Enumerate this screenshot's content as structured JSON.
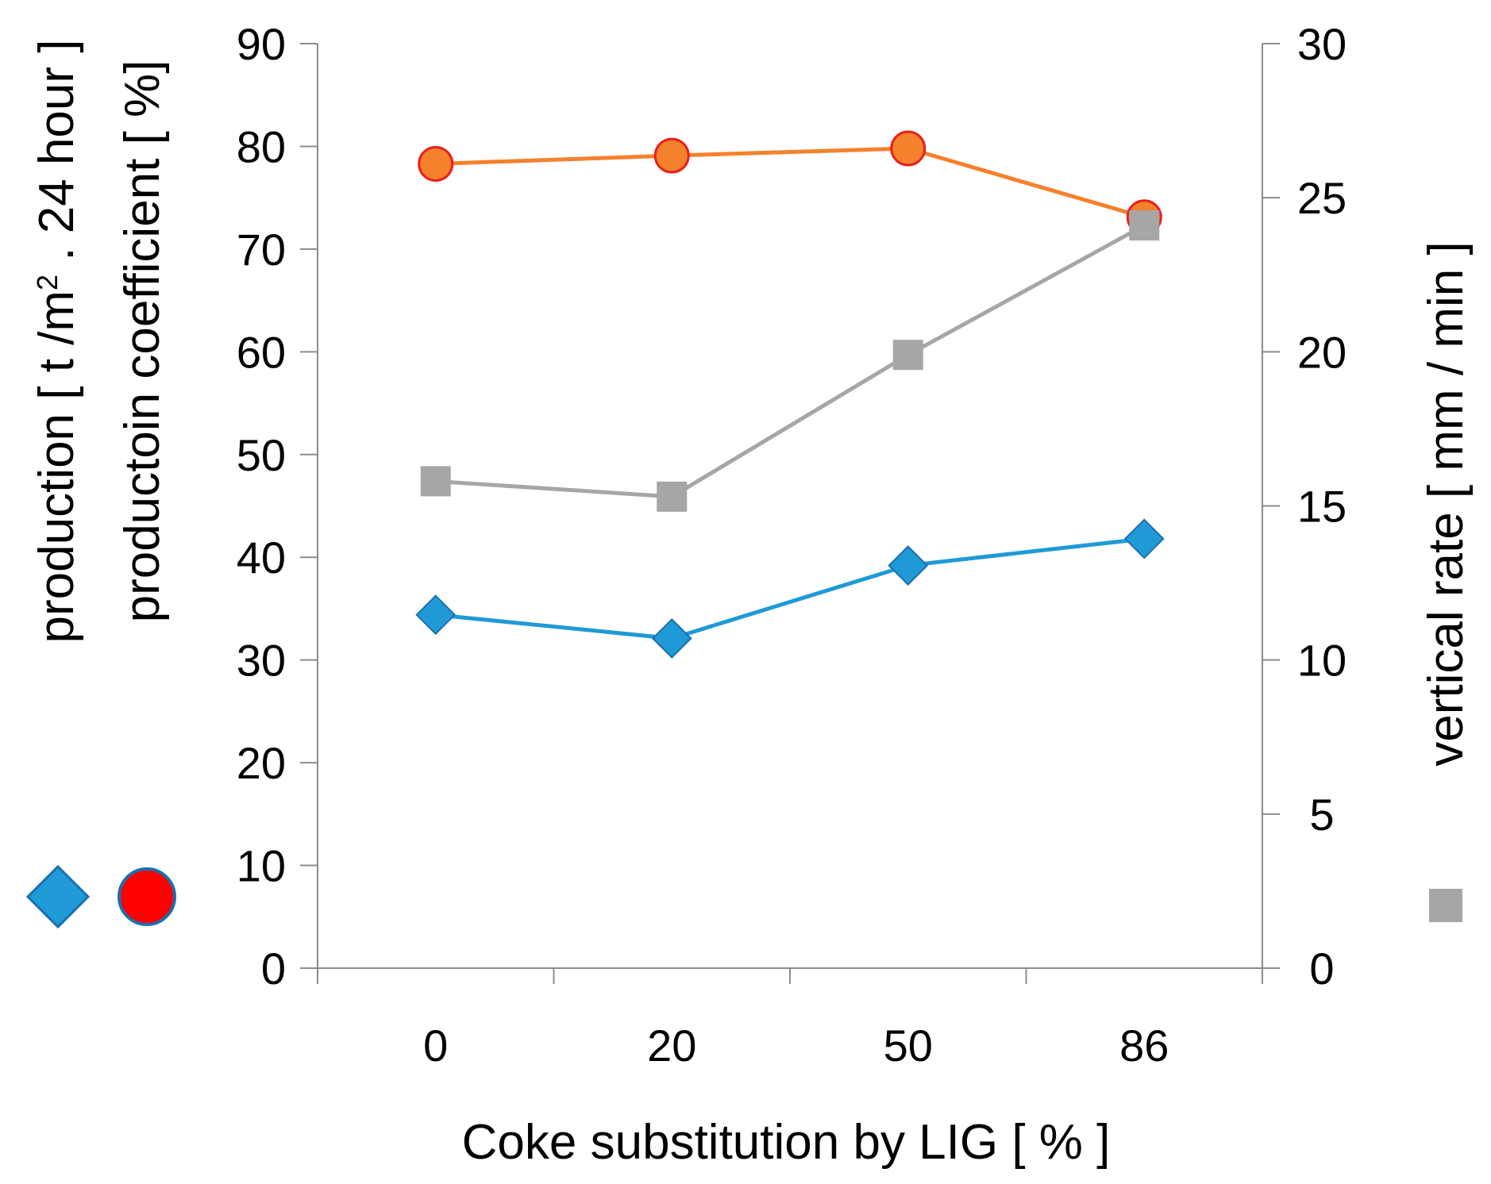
{
  "chart_data": {
    "type": "line",
    "categories": [
      "0",
      "20",
      "50",
      "86"
    ],
    "xlabel": "Coke substitution by LIG [ % ]",
    "left_axis": {
      "ylim": [
        0,
        90
      ],
      "ticks": [
        0,
        10,
        20,
        30,
        40,
        50,
        60,
        70,
        80,
        90
      ],
      "label_line1": {
        "before_sup": "production [ t /m",
        "sup": "2",
        "after_sup": " . 24 hour ]"
      },
      "label_line2": "productoin coefficient   [ %]"
    },
    "right_axis": {
      "ylim": [
        0,
        30
      ],
      "ticks": [
        0,
        5,
        10,
        15,
        20,
        25,
        30
      ],
      "label": "vertical rate [ mm / min ]"
    },
    "series": [
      {
        "name": "production",
        "axis": "left",
        "marker": "diamond",
        "line_color": "#1f9ad6",
        "marker_fill": "#1f9ad6",
        "marker_stroke": "#1a6fae",
        "values": [
          34.4,
          32.1,
          39.2,
          41.8
        ]
      },
      {
        "name": "production coefficient",
        "axis": "left",
        "marker": "circle",
        "line_color": "#f5812c",
        "marker_fill": "#f5812c",
        "marker_stroke": "#e8201a",
        "legend_fill": "#ff0000",
        "legend_stroke": "#1a6fae",
        "values": [
          78.3,
          79.1,
          79.8,
          73.1
        ]
      },
      {
        "name": "vertical rate",
        "axis": "right",
        "marker": "square",
        "line_color": "#a6a6a6",
        "marker_fill": "#a6a6a6",
        "marker_stroke": "#a6a6a6",
        "values": [
          15.8,
          15.3,
          19.9,
          24.1
        ]
      }
    ],
    "axis_color": "#8c8c8c"
  }
}
